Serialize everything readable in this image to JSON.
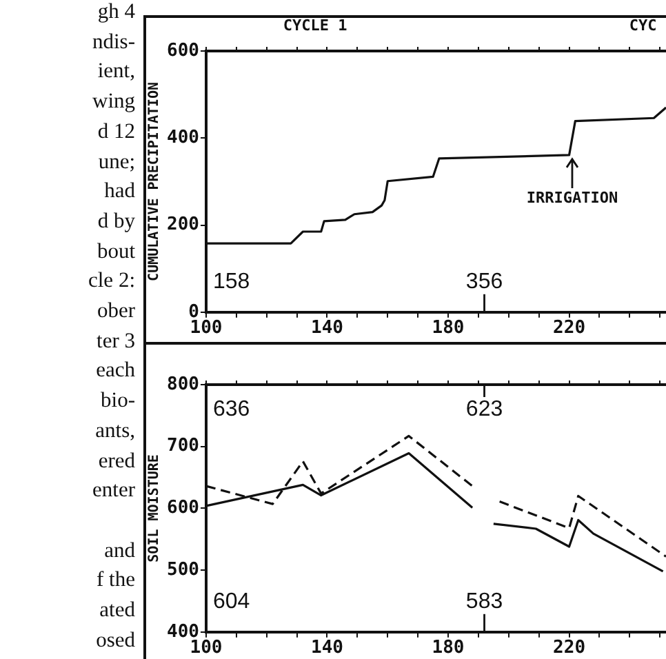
{
  "chart_data": [
    {
      "type": "line",
      "ylabel": "CUMULATIVE PRECIPITATION",
      "marker": "none",
      "xlim": [
        100,
        252
      ],
      "ylim": [
        0,
        600
      ],
      "xticks": [
        100,
        {
          "value": 110,
          "label": null
        },
        {
          "value": 120,
          "label": null
        },
        {
          "value": 130,
          "label": null
        },
        140,
        {
          "value": 150,
          "label": null
        },
        {
          "value": 160,
          "label": null
        },
        {
          "value": 170,
          "label": null
        },
        180,
        {
          "value": 190,
          "label": null
        },
        {
          "value": 200,
          "label": null
        },
        {
          "value": 210,
          "label": null
        },
        220,
        {
          "value": 230,
          "label": null
        },
        {
          "value": 240,
          "label": null
        },
        {
          "value": 250,
          "label": null
        }
      ],
      "yticks": [
        0,
        200,
        400,
        600
      ],
      "series": [
        {
          "color": "#111111",
          "line_style": "solid",
          "x": [
            100,
            128,
            132,
            138,
            139,
            146,
            149,
            155,
            158,
            159,
            160,
            175,
            177,
            220,
            222,
            248,
            252
          ],
          "values": [
            158,
            158,
            185,
            185,
            209,
            212,
            225,
            230,
            245,
            257,
            301,
            311,
            353,
            361,
            439,
            446,
            470
          ]
        }
      ],
      "annotations": [
        "gh 4\nndis-\nient,\nwing\nd 12\nune;\nhad\nd by\nbout\ncle 2:\nober\nter 3\neach\nbio-\nants,\nered\nenter\n\nand\nf the\nated\nosed",
        "CYCLE 1",
        "CYC",
        "158",
        "356",
        {
          "text": "IRRIGATION",
          "x": 221,
          "y": 361
        }
      ]
    },
    {
      "type": "line",
      "ylabel": "SOIL MOISTURE",
      "marker": "none",
      "xlim": [
        100,
        252
      ],
      "ylim": [
        400,
        800
      ],
      "xticks": [
        100,
        {
          "value": 110,
          "label": null
        },
        {
          "value": 120,
          "label": null
        },
        {
          "value": 130,
          "label": null
        },
        140,
        {
          "value": 150,
          "label": null
        },
        {
          "value": 160,
          "label": null
        },
        {
          "value": 170,
          "label": null
        },
        180,
        {
          "value": 190,
          "label": null
        },
        {
          "value": 200,
          "label": null
        },
        {
          "value": 210,
          "label": null
        },
        220,
        {
          "value": 230,
          "label": null
        },
        {
          "value": 240,
          "label": null
        },
        {
          "value": 250,
          "label": null
        }
      ],
      "yticks": [
        400,
        500,
        600,
        700,
        800
      ],
      "series": [
        {
          "color": "#111111",
          "line_style": "solid",
          "x": [
            100,
            132,
            138,
            167,
            188,
            192,
            195,
            209,
            220,
            223,
            228,
            251
          ],
          "values": [
            604,
            638,
            621,
            689,
            601,
            null,
            575,
            567,
            538,
            581,
            559,
            498
          ]
        },
        {
          "color": "#111111",
          "line_style": "dashed",
          "x": [
            100,
            122,
            132,
            138,
            167,
            188,
            192,
            197,
            220,
            223,
            252
          ],
          "values": [
            636,
            607,
            676,
            624,
            717,
            636,
            null,
            611,
            568,
            620,
            522
          ]
        }
      ],
      "annotations": [
        "636",
        "604",
        "623",
        "583"
      ]
    }
  ]
}
